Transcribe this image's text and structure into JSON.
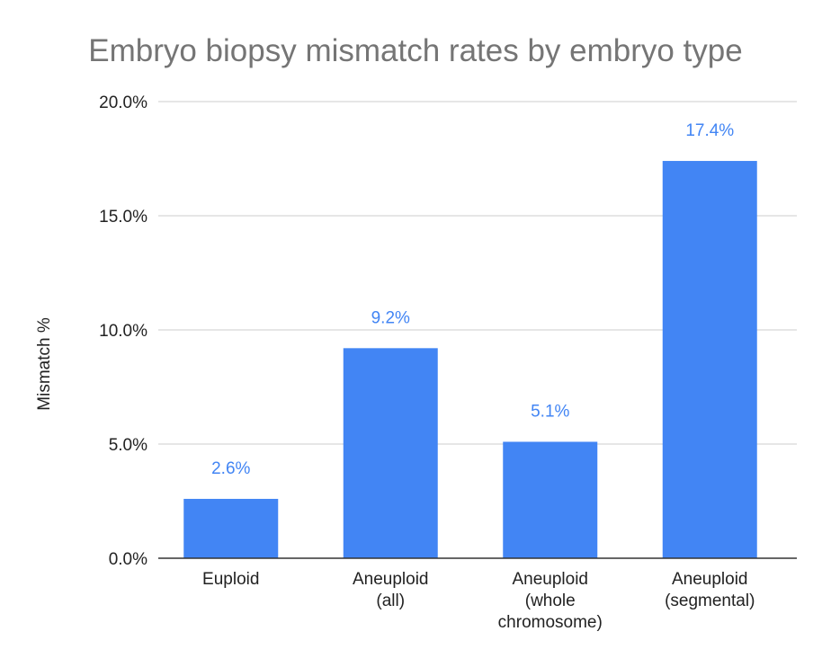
{
  "chart_data": {
    "type": "bar",
    "title": "Embryo biopsy mismatch rates by embryo type",
    "ylabel": "Mismatch %",
    "xlabel": "",
    "categories": [
      [
        "Euploid"
      ],
      [
        "Aneuploid",
        "(all)"
      ],
      [
        "Aneuploid",
        "(whole",
        "chromosome)"
      ],
      [
        "Aneuploid",
        "(segmental)"
      ]
    ],
    "values": [
      2.6,
      9.2,
      5.1,
      17.4
    ],
    "data_labels": [
      "2.6%",
      "9.2%",
      "5.1%",
      "17.4%"
    ],
    "ylim": [
      0,
      20
    ],
    "yticks": [
      0,
      5,
      10,
      15,
      20
    ],
    "ytick_labels": [
      "0.0%",
      "5.0%",
      "10.0%",
      "15.0%",
      "20.0%"
    ],
    "grid": true,
    "legend": "none",
    "colors": {
      "bar": "#4285f4",
      "data_label": "#4285f4",
      "title": "#757575",
      "grid": "#cccccc"
    }
  }
}
